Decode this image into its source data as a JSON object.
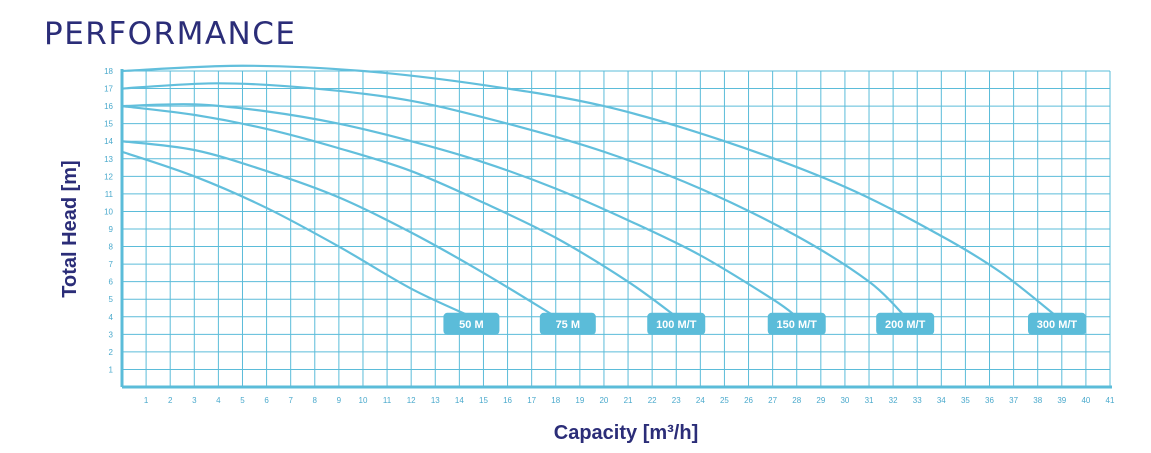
{
  "page": {
    "title": "PERFORMANCE"
  },
  "colors": {
    "grid": "#5bbcd9",
    "axis": "#5bbcd9",
    "curve": "#62bfdc",
    "label_bg": "#5bbcd9",
    "label_text": "#ffffff",
    "title": "#2b2d78",
    "tick_text": "#4aa9cc"
  },
  "chart_data": {
    "type": "line",
    "title": "",
    "xlabel": "Capacity [m³/h]",
    "ylabel": "Total Head [m]",
    "xlim": [
      0,
      41
    ],
    "ylim": [
      0,
      18
    ],
    "x_ticks": [
      1,
      2,
      3,
      4,
      5,
      6,
      7,
      8,
      9,
      10,
      11,
      12,
      13,
      14,
      15,
      16,
      17,
      18,
      19,
      20,
      21,
      22,
      23,
      24,
      25,
      26,
      27,
      28,
      29,
      30,
      31,
      32,
      33,
      34,
      35,
      36,
      37,
      38,
      39,
      40,
      41
    ],
    "y_ticks": [
      1,
      2,
      3,
      4,
      5,
      6,
      7,
      8,
      9,
      10,
      11,
      12,
      13,
      14,
      15,
      16,
      17,
      18
    ],
    "grid": true,
    "series": [
      {
        "name": "50 M",
        "x": [
          0,
          3,
          6,
          9,
          12,
          14.5
        ],
        "y": [
          13.4,
          12.0,
          10.2,
          8.0,
          5.6,
          4.0
        ]
      },
      {
        "name": "75 M",
        "x": [
          0,
          3,
          6,
          9,
          12,
          15,
          18
        ],
        "y": [
          14.0,
          13.5,
          12.3,
          10.8,
          8.8,
          6.5,
          4.0
        ]
      },
      {
        "name": "100 M/T",
        "x": [
          0,
          3,
          6,
          9,
          12,
          15,
          18,
          21,
          23
        ],
        "y": [
          16.0,
          15.5,
          14.7,
          13.6,
          12.3,
          10.5,
          8.5,
          6.0,
          4.0
        ]
      },
      {
        "name": "150 M/T",
        "x": [
          0,
          3,
          6,
          9,
          12,
          15,
          18,
          21,
          24,
          27,
          28
        ],
        "y": [
          16.0,
          16.1,
          15.7,
          15.0,
          14.0,
          12.8,
          11.3,
          9.5,
          7.5,
          5.0,
          4.0
        ]
      },
      {
        "name": "200 M/T",
        "x": [
          0,
          4,
          8,
          12,
          16,
          20,
          24,
          28,
          31,
          32.5
        ],
        "y": [
          17.0,
          17.3,
          17.0,
          16.3,
          15.0,
          13.4,
          11.3,
          8.6,
          6.0,
          4.0
        ]
      },
      {
        "name": "300 M/T",
        "x": [
          0,
          5,
          10,
          15,
          20,
          25,
          30,
          34,
          36.5,
          38.8
        ],
        "y": [
          18.0,
          18.3,
          18.0,
          17.2,
          16.0,
          14.0,
          11.4,
          8.6,
          6.5,
          4.0
        ]
      }
    ],
    "labels": [
      {
        "text": "50 M",
        "x": 14.5,
        "y": 3.6
      },
      {
        "text": "75 M",
        "x": 18.5,
        "y": 3.6
      },
      {
        "text": "100 M/T",
        "x": 23.0,
        "y": 3.6
      },
      {
        "text": "150 M/T",
        "x": 28.0,
        "y": 3.6
      },
      {
        "text": "200 M/T",
        "x": 32.5,
        "y": 3.6
      },
      {
        "text": "300 M/T",
        "x": 38.8,
        "y": 3.6
      }
    ]
  }
}
